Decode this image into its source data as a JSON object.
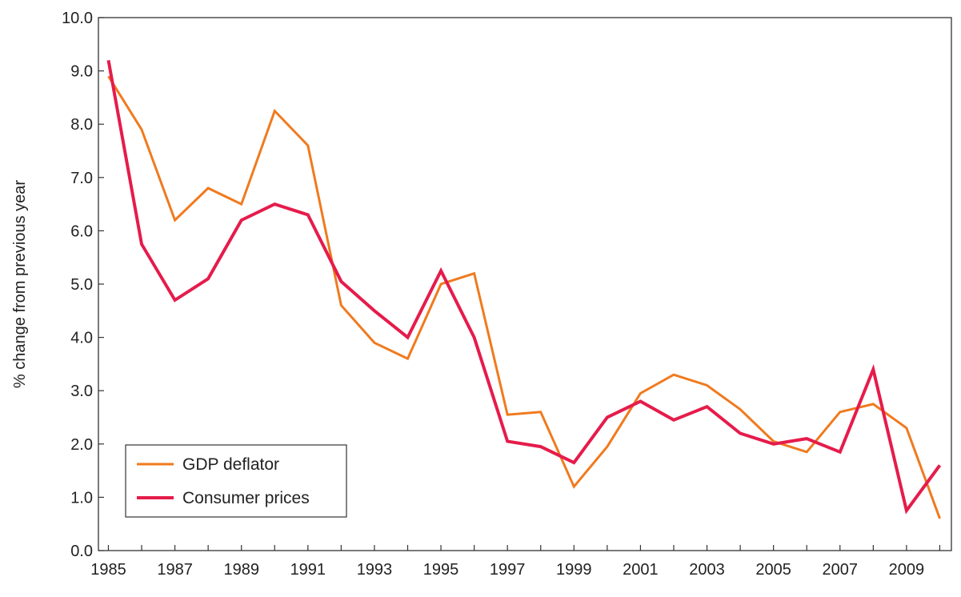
{
  "chart_data": {
    "type": "line",
    "title": "",
    "xlabel": "",
    "ylabel": "% change from previous year",
    "x": [
      1985,
      1986,
      1987,
      1988,
      1989,
      1990,
      1991,
      1992,
      1993,
      1994,
      1995,
      1996,
      1997,
      1998,
      1999,
      2000,
      2001,
      2002,
      2003,
      2004,
      2005,
      2006,
      2007,
      2008,
      2009,
      2010
    ],
    "x_tick_labels": [
      "1985",
      "1987",
      "1989",
      "1991",
      "1993",
      "1995",
      "1997",
      "1999",
      "2001",
      "2003",
      "2005",
      "2007",
      "2009"
    ],
    "y_tick_labels": [
      "0.0",
      "1.0",
      "2.0",
      "3.0",
      "4.0",
      "5.0",
      "6.0",
      "7.0",
      "8.0",
      "9.0",
      "10.0"
    ],
    "ylim": [
      0,
      10
    ],
    "xlim": [
      1984.7,
      2010.35
    ],
    "grid": false,
    "legend_position": "bottom-left",
    "series": [
      {
        "name": "GDP deflator",
        "color": "#F07A1E",
        "values": [
          8.9,
          7.9,
          6.2,
          6.8,
          6.5,
          8.25,
          7.6,
          4.6,
          3.9,
          3.6,
          5.0,
          5.2,
          2.55,
          2.6,
          1.2,
          1.95,
          2.95,
          3.3,
          3.1,
          2.65,
          2.05,
          1.85,
          2.6,
          2.75,
          2.3,
          0.6
        ]
      },
      {
        "name": "Consumer prices",
        "color": "#E51C4B",
        "values": [
          9.2,
          5.75,
          4.7,
          5.1,
          6.2,
          6.5,
          6.3,
          5.05,
          4.5,
          4.0,
          5.25,
          4.0,
          2.05,
          1.95,
          1.65,
          2.5,
          2.8,
          2.45,
          2.7,
          2.2,
          2.0,
          2.1,
          1.85,
          3.4,
          0.75,
          1.6
        ]
      }
    ]
  }
}
